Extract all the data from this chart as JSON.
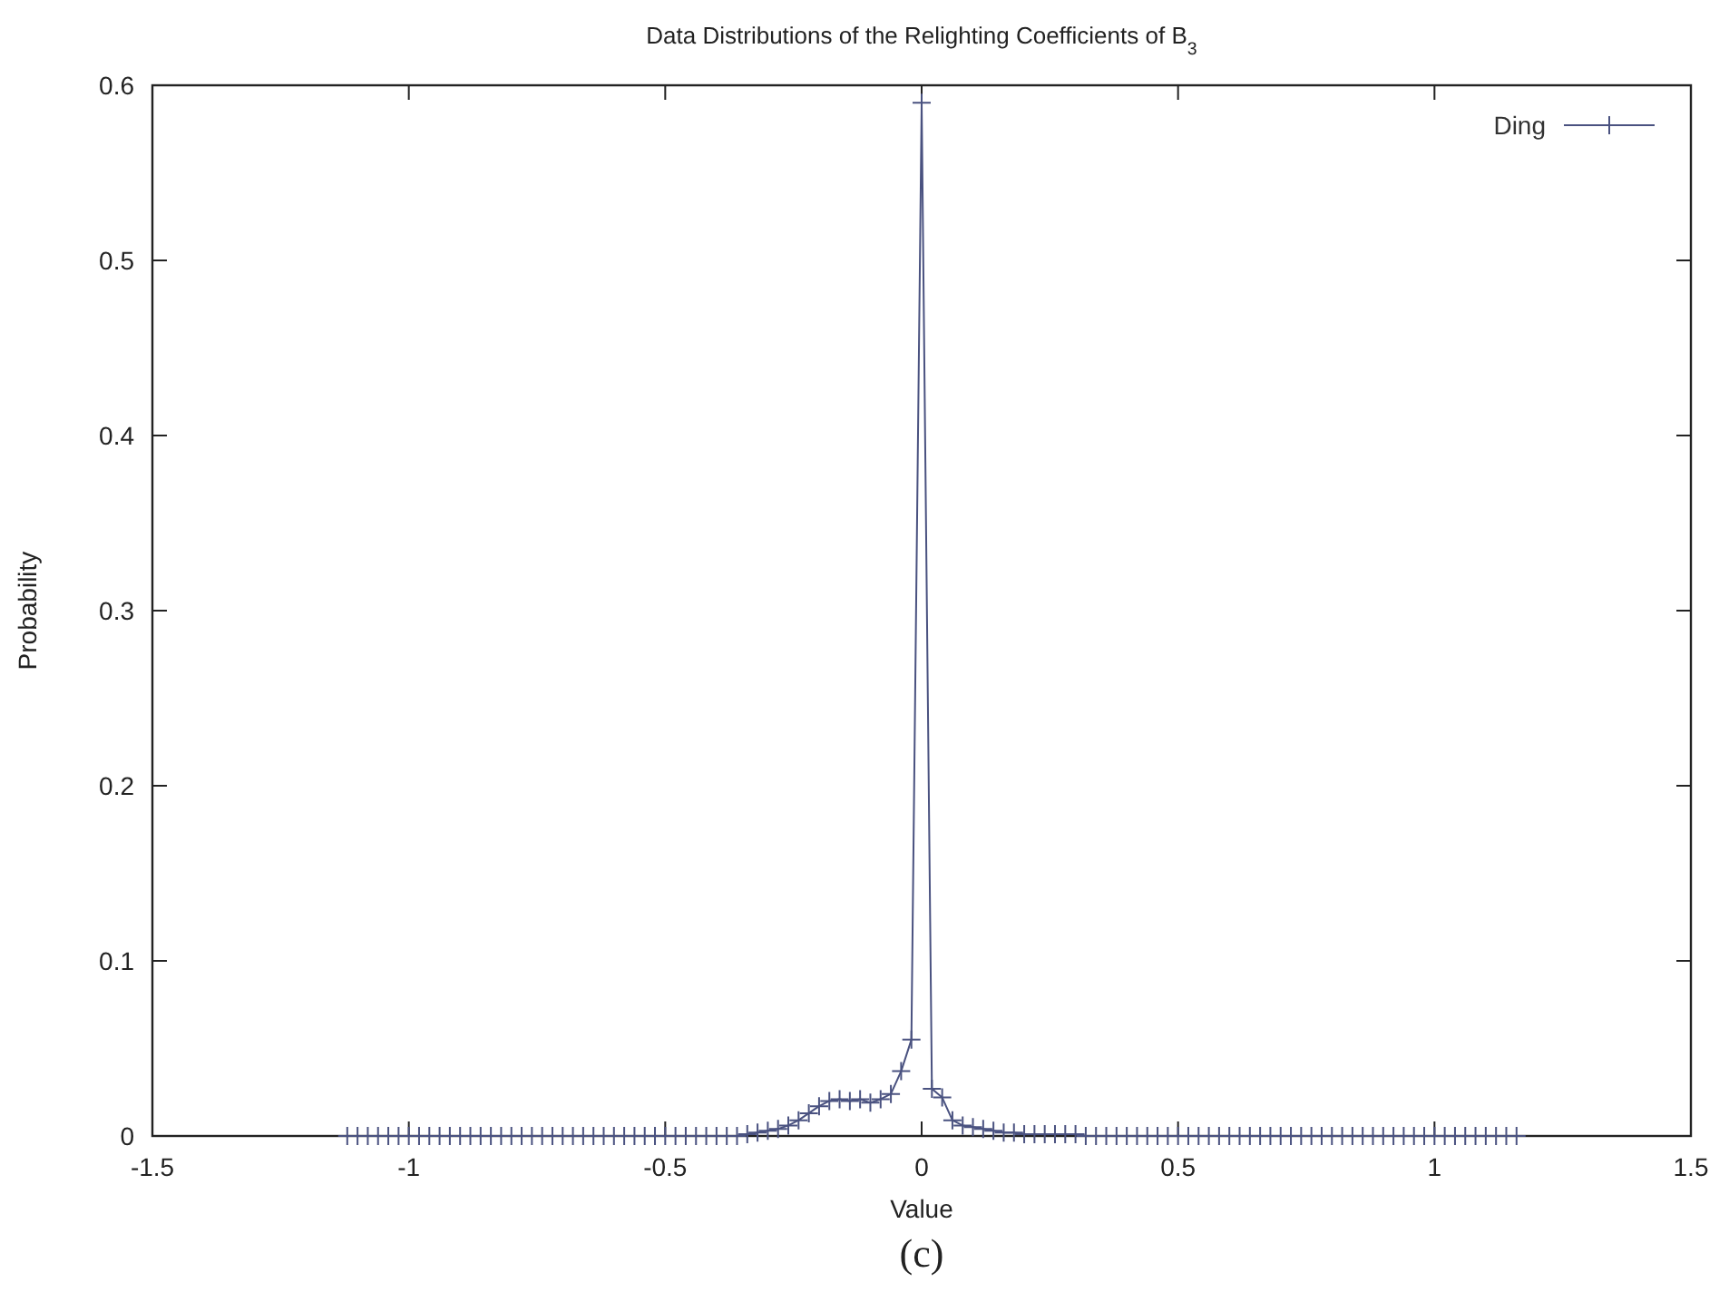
{
  "chart_data": {
    "type": "line",
    "title": "Data Distributions of the Relighting Coefficients of B$_{3}$",
    "xlabel": "Value",
    "ylabel": "Probability",
    "annotations": [
      "(c)"
    ],
    "x": [
      -1.12,
      -1.1,
      -1.08,
      -1.06,
      -1.04,
      -1.02,
      -1,
      -0.98,
      -0.96,
      -0.94,
      -0.92,
      -0.9,
      -0.88,
      -0.86,
      -0.84,
      -0.82,
      -0.8,
      -0.78,
      -0.76,
      -0.74,
      -0.72,
      -0.7,
      -0.68,
      -0.66,
      -0.64,
      -0.62,
      -0.6,
      -0.58,
      -0.56,
      -0.54,
      -0.52,
      -0.5,
      -0.48,
      -0.46,
      -0.44,
      -0.42,
      -0.4,
      -0.38,
      -0.36,
      -0.34,
      -0.32,
      -0.3,
      -0.28,
      -0.26,
      -0.24,
      -0.22,
      -0.2,
      -0.18,
      -0.16,
      -0.14,
      -0.12,
      -0.1,
      -0.08,
      -0.06,
      -0.04,
      -0.02,
      0,
      0.02,
      0.04,
      0.06,
      0.08,
      0.1,
      0.12,
      0.14,
      0.16,
      0.18,
      0.2,
      0.22,
      0.24,
      0.26,
      0.28,
      0.3,
      0.32,
      0.34,
      0.36,
      0.38,
      0.4,
      0.42,
      0.44,
      0.46,
      0.48,
      0.5,
      0.52,
      0.54,
      0.56,
      0.58,
      0.6,
      0.62,
      0.64,
      0.66,
      0.68,
      0.7,
      0.72,
      0.74,
      0.76,
      0.78,
      0.8,
      0.82,
      0.84,
      0.86,
      0.88,
      0.9,
      0.92,
      0.94,
      0.96,
      0.98,
      1,
      1.02,
      1.04,
      1.06,
      1.08,
      1.1,
      1.12,
      1.14,
      1.16
    ],
    "series": [
      {
        "name": "Ding",
        "color": "#4a5280",
        "values": [
          0,
          0,
          0,
          0,
          0,
          0,
          0,
          0,
          0,
          0,
          0,
          0,
          0,
          0,
          0,
          0,
          0,
          0,
          0,
          0,
          0,
          0,
          0,
          0,
          0,
          0,
          0,
          0,
          0,
          0,
          0,
          0,
          0,
          0,
          0,
          0,
          0,
          0,
          0,
          0.001,
          0.002,
          0.003,
          0.004,
          0.006,
          0.009,
          0.013,
          0.017,
          0.02,
          0.021,
          0.02,
          0.021,
          0.019,
          0.021,
          0.024,
          0.037,
          0.055,
          0.59,
          0.027,
          0.022,
          0.009,
          0.006,
          0.005,
          0.004,
          0.003,
          0.002,
          0.002,
          0.001,
          0.001,
          0.001,
          0.001,
          0.001,
          0.001,
          0,
          0,
          0,
          0,
          0,
          0,
          0,
          0,
          0,
          0,
          0,
          0,
          0,
          0,
          0,
          0,
          0,
          0,
          0,
          0,
          0,
          0,
          0,
          0,
          0,
          0,
          0,
          0,
          0,
          0,
          0,
          0,
          0,
          0,
          0,
          0,
          0,
          0,
          0,
          0,
          0,
          0,
          0
        ]
      }
    ],
    "xlim": [
      -1.5,
      1.5
    ],
    "xticks": [
      -1.5,
      -1,
      -0.5,
      0,
      0.5,
      1,
      1.5
    ],
    "ylim": [
      0,
      0.6
    ],
    "yticks": [
      0,
      0.1,
      0.2,
      0.3,
      0.4,
      0.5,
      0.6
    ],
    "marker": "cross",
    "line_style": "solid",
    "legend": "top right"
  }
}
